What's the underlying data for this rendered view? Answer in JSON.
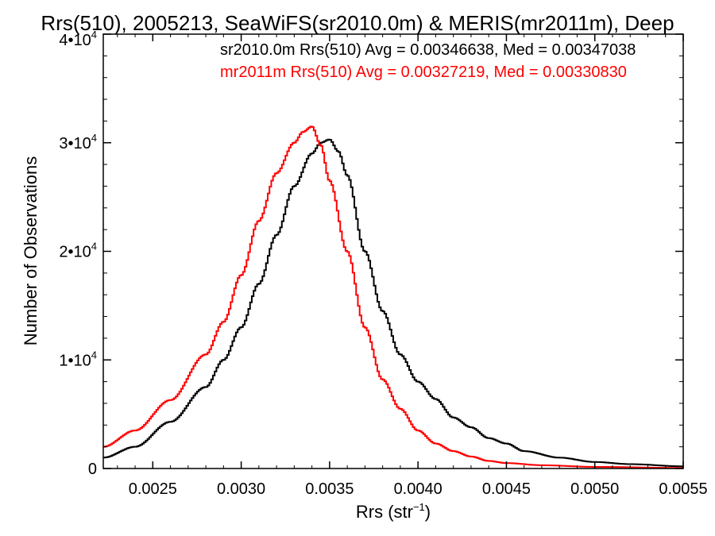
{
  "chart_data": {
    "type": "line",
    "step": true,
    "title": "Rrs(510), 2005213, SeaWiFS(sr2010.0m) & MERIS(mr2011m), Deep",
    "xlabel": "Rrs (str",
    "xlabel_sup": "−1",
    "xlabel_end": ")",
    "ylabel": "Number of Observations",
    "xlim": [
      0.00222,
      0.0055
    ],
    "ylim": [
      0,
      40000
    ],
    "x_ticks": [
      {
        "value": 0.0025,
        "label": "0.0025"
      },
      {
        "value": 0.003,
        "label": "0.0030"
      },
      {
        "value": 0.0035,
        "label": "0.0035"
      },
      {
        "value": 0.004,
        "label": "0.0040"
      },
      {
        "value": 0.0045,
        "label": "0.0045"
      },
      {
        "value": 0.005,
        "label": "0.0050"
      },
      {
        "value": 0.0055,
        "label": "0.0055"
      }
    ],
    "y_ticks": [
      {
        "value": 0,
        "label": "0",
        "sup": ""
      },
      {
        "value": 10000,
        "label": "1•10",
        "sup": "4"
      },
      {
        "value": 20000,
        "label": "2•10",
        "sup": "4"
      },
      {
        "value": 30000,
        "label": "3•10",
        "sup": "4"
      },
      {
        "value": 40000,
        "label": "4•10",
        "sup": "4"
      }
    ],
    "series": [
      {
        "name": "sr2010.0m",
        "legend": "sr2010.0m Rrs(510) Avg = 0.00346638, Med = 0.00347038",
        "color": "#000000",
        "x": [
          0.00222,
          0.0024,
          0.0026,
          0.0028,
          0.0029,
          0.003,
          0.0031,
          0.0032,
          0.0033,
          0.0034,
          0.00345,
          0.0035,
          0.00355,
          0.0036,
          0.0037,
          0.0038,
          0.0039,
          0.004,
          0.0041,
          0.0042,
          0.0043,
          0.0044,
          0.0045,
          0.0046,
          0.0048,
          0.005,
          0.0052,
          0.0055
        ],
        "y": [
          1000,
          2000,
          4300,
          7500,
          10000,
          13000,
          17000,
          21500,
          26000,
          29000,
          30000,
          30300,
          29200,
          27000,
          20000,
          14500,
          10500,
          8000,
          6400,
          4700,
          3800,
          2800,
          2300,
          1600,
          1000,
          600,
          400,
          200
        ]
      },
      {
        "name": "mr2011m",
        "legend": "mr2011m Rrs(510) Avg = 0.00327219, Med = 0.00330830",
        "color": "#ff0000",
        "x": [
          0.00222,
          0.0024,
          0.0026,
          0.0028,
          0.0029,
          0.003,
          0.0031,
          0.0032,
          0.0033,
          0.00335,
          0.0034,
          0.00345,
          0.0035,
          0.0036,
          0.0037,
          0.0038,
          0.0039,
          0.004,
          0.0041,
          0.0042,
          0.0043,
          0.0044,
          0.0045,
          0.0047,
          0.005,
          0.0055
        ],
        "y": [
          2000,
          3500,
          6300,
          10500,
          13500,
          17800,
          22800,
          27200,
          30000,
          31000,
          31500,
          29800,
          26500,
          20000,
          13000,
          8200,
          5500,
          3500,
          2300,
          1600,
          1100,
          700,
          500,
          300,
          150,
          50
        ]
      }
    ],
    "grid": false,
    "legend_position": "top-right"
  }
}
